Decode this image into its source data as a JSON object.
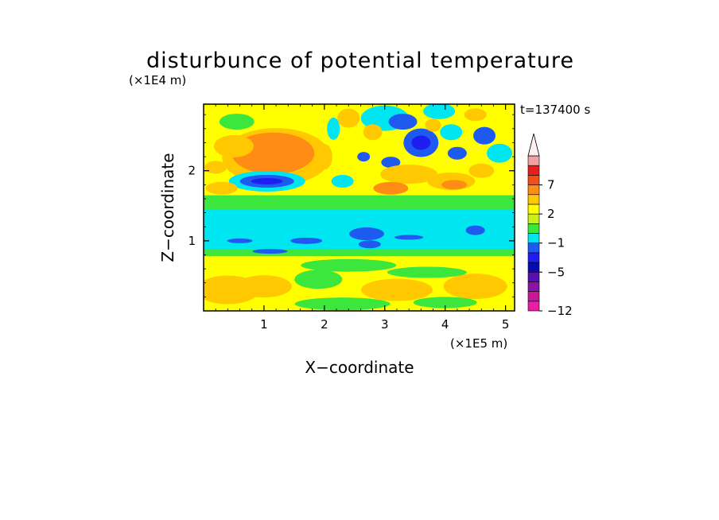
{
  "chart_data": {
    "type": "heatmap",
    "title": "disturbunce of potential temperature",
    "xlabel": "X−coordinate",
    "ylabel": "Z−coordinate",
    "x_unit": "(×1E5 m)",
    "y_unit": "(×1E4 m)",
    "time_label": "t=137400 s",
    "xlim": [
      0,
      5.15
    ],
    "ylim": [
      0,
      2.95
    ],
    "x_ticks": [
      1,
      2,
      3,
      4,
      5
    ],
    "y_ticks": [
      1,
      2
    ],
    "colorbar": {
      "extend": "max",
      "levels": [
        -12,
        -10,
        -8,
        -6,
        -5,
        -4,
        -3,
        -1,
        0,
        1,
        2,
        3,
        5,
        7,
        9,
        11
      ],
      "tick_labels": [
        "−12",
        "−5",
        "−1",
        "2",
        "7"
      ],
      "tick_values": [
        -12,
        -5,
        -1,
        2,
        7
      ],
      "colors": [
        "#e81ea8",
        "#c8189a",
        "#8c12a8",
        "#5a0fb0",
        "#0a0ab4",
        "#1e1ef0",
        "#1e5af0",
        "#00e6f0",
        "#3ce63c",
        "#c8f01e",
        "#ffff00",
        "#ffc800",
        "#ff8c14",
        "#f05014",
        "#e61e1e",
        "#f0a0a0"
      ],
      "arrow_color": "#fff0f0"
    },
    "features": [
      {
        "name": "warm region upper left",
        "x": [
          0.6,
          1.9
        ],
        "y": [
          1.95,
          2.5
        ],
        "value": 4
      },
      {
        "name": "cold core",
        "x": [
          0.7,
          1.4
        ],
        "y": [
          1.8,
          1.9
        ],
        "value": -4
      },
      {
        "name": "cold layer",
        "x": [
          0,
          5.15
        ],
        "y": [
          0.8,
          1.35
        ],
        "value": -0.5
      },
      {
        "name": "wave cells upper right",
        "x": [
          2.8,
          4.8
        ],
        "y": [
          1.6,
          2.8
        ],
        "value": [
          -5,
          4
        ]
      }
    ]
  }
}
